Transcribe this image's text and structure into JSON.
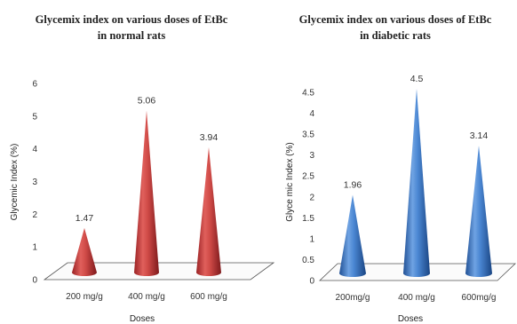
{
  "chart_data": [
    {
      "type": "bar",
      "style": "3d-cone",
      "title_lines": [
        "Glycemix index on various doses of EtBc",
        "in normal rats"
      ],
      "xlabel": "Doses",
      "ylabel": "Glycemic Index (%)",
      "categories": [
        "200 mg/g",
        "400 mg/g",
        "600 mg/g"
      ],
      "values": [
        1.47,
        5.06,
        3.94
      ],
      "data_labels": [
        "1.47",
        "5.06",
        "3.94"
      ],
      "yticks": [
        "0",
        "1",
        "2",
        "3",
        "4",
        "5",
        "6"
      ],
      "ylim": [
        0,
        6
      ],
      "color": "#c0393b",
      "legend": "none",
      "grid": false
    },
    {
      "type": "bar",
      "style": "3d-cone",
      "title_lines": [
        "Glycemix index on various doses of EtBc",
        "in diabetic rats"
      ],
      "xlabel": "Doses",
      "ylabel": "Glyce mic Index (%)",
      "categories": [
        "200mg/g",
        "400 mg/g",
        "600mg/g"
      ],
      "values": [
        1.96,
        4.5,
        3.14
      ],
      "data_labels": [
        "1.96",
        "4.5",
        "3.14"
      ],
      "yticks": [
        "0",
        "0.5",
        "1",
        "1.5",
        "2",
        "2.5",
        "3",
        "3.5",
        "4",
        "4.5"
      ],
      "ylim": [
        0,
        4.5
      ],
      "color": "#3a78c8",
      "legend": "none",
      "grid": false
    }
  ]
}
